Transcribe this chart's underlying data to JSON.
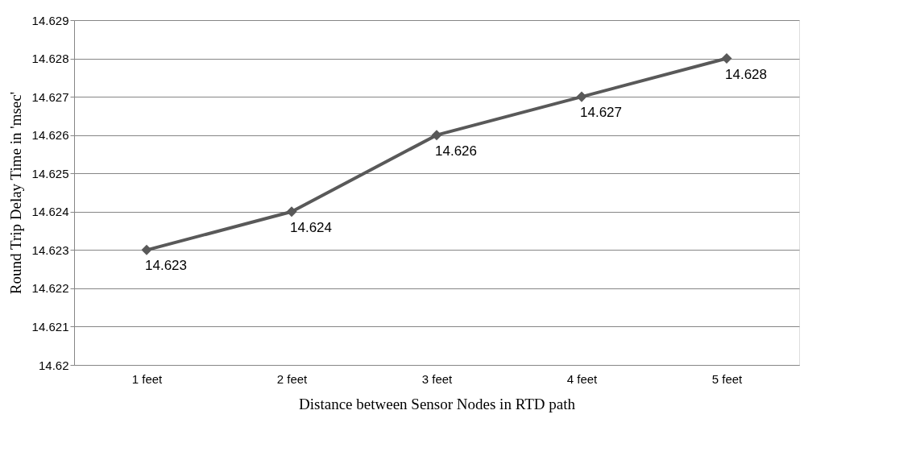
{
  "chart_data": {
    "type": "line",
    "xlabel": "Distance between Sensor Nodes in RTD path",
    "ylabel": "Round Trip Delay Time in 'msec'",
    "categories": [
      "1 feet",
      "2 feet",
      "3 feet",
      "4 feet",
      "5 feet"
    ],
    "series": [
      {
        "color": "#595959",
        "values": [
          14.623,
          14.624,
          14.626,
          14.627,
          14.628
        ]
      }
    ],
    "ylim": [
      14.62,
      14.629
    ],
    "yticks": [
      14.62,
      14.621,
      14.622,
      14.623,
      14.624,
      14.625,
      14.626,
      14.627,
      14.628,
      14.629
    ],
    "grid": "y",
    "marker": "diamond",
    "line_style": "solid",
    "data_labels": true
  }
}
